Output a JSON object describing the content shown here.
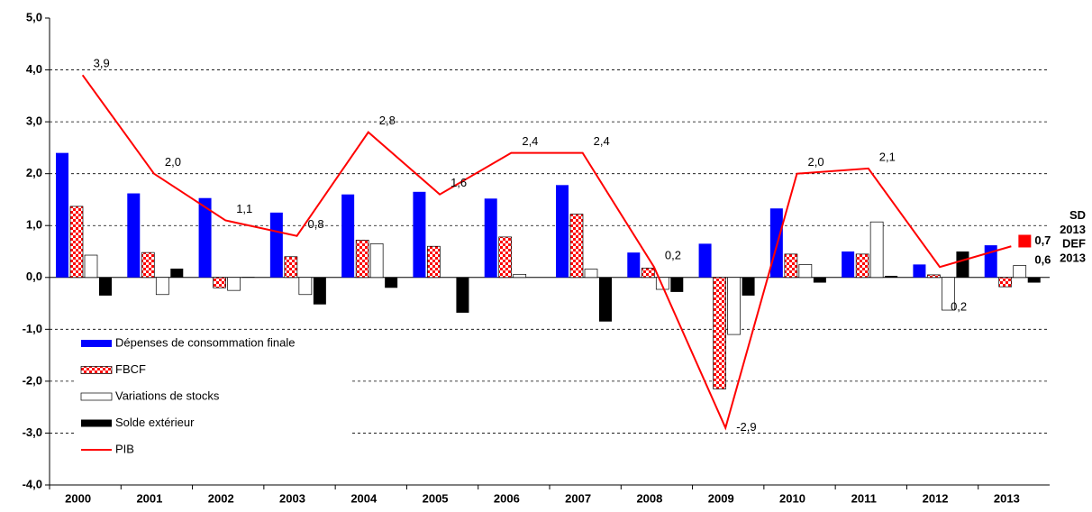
{
  "chart_data": {
    "type": "bar",
    "categories": [
      "2000",
      "2001",
      "2002",
      "2003",
      "2004",
      "2005",
      "2006",
      "2007",
      "2008",
      "2009",
      "2010",
      "2011",
      "2012",
      "2013"
    ],
    "series": [
      {
        "name": "Dépenses de consommation finale",
        "type": "bar",
        "color": "#0000ff",
        "values": [
          2.4,
          1.62,
          1.53,
          1.25,
          1.6,
          1.65,
          1.52,
          1.78,
          0.48,
          0.65,
          1.33,
          0.5,
          0.25,
          0.62
        ]
      },
      {
        "name": "FBCF",
        "type": "bar",
        "color": "#ff0000",
        "pattern": "checker",
        "values": [
          1.37,
          0.48,
          -0.2,
          0.4,
          0.72,
          0.6,
          0.78,
          1.22,
          0.18,
          -2.15,
          0.45,
          0.45,
          0.05,
          -0.18
        ]
      },
      {
        "name": "Variations de stocks",
        "type": "bar",
        "color": "#ffffff",
        "values": [
          0.43,
          -0.33,
          -0.25,
          -0.33,
          0.65,
          0,
          0.06,
          0.16,
          -0.23,
          -1.1,
          0.25,
          1.07,
          -0.63,
          0.23
        ]
      },
      {
        "name": "Solde extérieur",
        "type": "bar",
        "color": "#000000",
        "values": [
          -0.35,
          0.17,
          0.01,
          -0.52,
          -0.2,
          -0.68,
          0,
          -0.85,
          -0.28,
          -0.35,
          -0.1,
          0.03,
          0.5,
          -0.1
        ]
      },
      {
        "name": "PIB",
        "type": "line",
        "color": "#ff0000",
        "values": [
          3.9,
          2.0,
          1.1,
          0.8,
          2.8,
          1.6,
          2.4,
          2.4,
          0.2,
          -2.9,
          2.0,
          2.1,
          0.2,
          0.6
        ],
        "value_labels": [
          "3,9",
          "2,0",
          "1,1",
          "0,8",
          "2,8",
          "1,6",
          "2,4",
          "2,4",
          "0,2",
          "-2,9",
          "2,0",
          "2,1",
          "0,2",
          null
        ]
      }
    ],
    "annotations": [
      {
        "text": "SD",
        "text2": "2013",
        "value": 0.7,
        "value_label": "0,7",
        "color": "#000000",
        "marker": "#ff0000"
      },
      {
        "text": "DEF",
        "text2": "2013",
        "value": 0.6,
        "value_label": "0,6",
        "color": "#ff0000"
      }
    ],
    "ylim": [
      -4,
      5
    ],
    "yticks": [
      {
        "value": -4,
        "label": "-4,0"
      },
      {
        "value": -3,
        "label": "-3,0"
      },
      {
        "value": -2,
        "label": "-2,0"
      },
      {
        "value": -1,
        "label": "-1,0"
      },
      {
        "value": 0,
        "label": "0,0"
      },
      {
        "value": 1,
        "label": "1,0"
      },
      {
        "value": 2,
        "label": "2,0"
      },
      {
        "value": 3,
        "label": "3,0"
      },
      {
        "value": 4,
        "label": "4,0"
      },
      {
        "value": 5,
        "label": "5,0"
      }
    ],
    "grid": true,
    "legend": "lower left"
  }
}
